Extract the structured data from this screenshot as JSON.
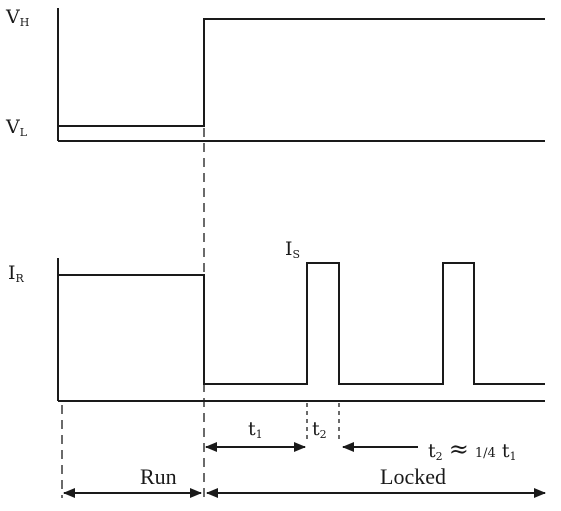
{
  "signals": {
    "voltage": {
      "high_label": "V",
      "high_sub": "H",
      "low_label": "V",
      "low_sub": "L"
    },
    "current": {
      "run_label": "I",
      "run_sub": "R",
      "spike_label": "I",
      "spike_sub": "S"
    }
  },
  "timing": {
    "t1_label": "t",
    "t1_sub": "1",
    "t2_label": "t",
    "t2_sub": "2",
    "relation_lhs": "t",
    "relation_lhs_sub": "2",
    "relation_symbol": "≈",
    "relation_fraction": "1/4",
    "relation_rhs": "t",
    "relation_rhs_sub": "1"
  },
  "phases": {
    "run": "Run",
    "locked": "Locked"
  },
  "colors": {
    "ink": "#1a1a1a",
    "background": "#ffffff"
  }
}
